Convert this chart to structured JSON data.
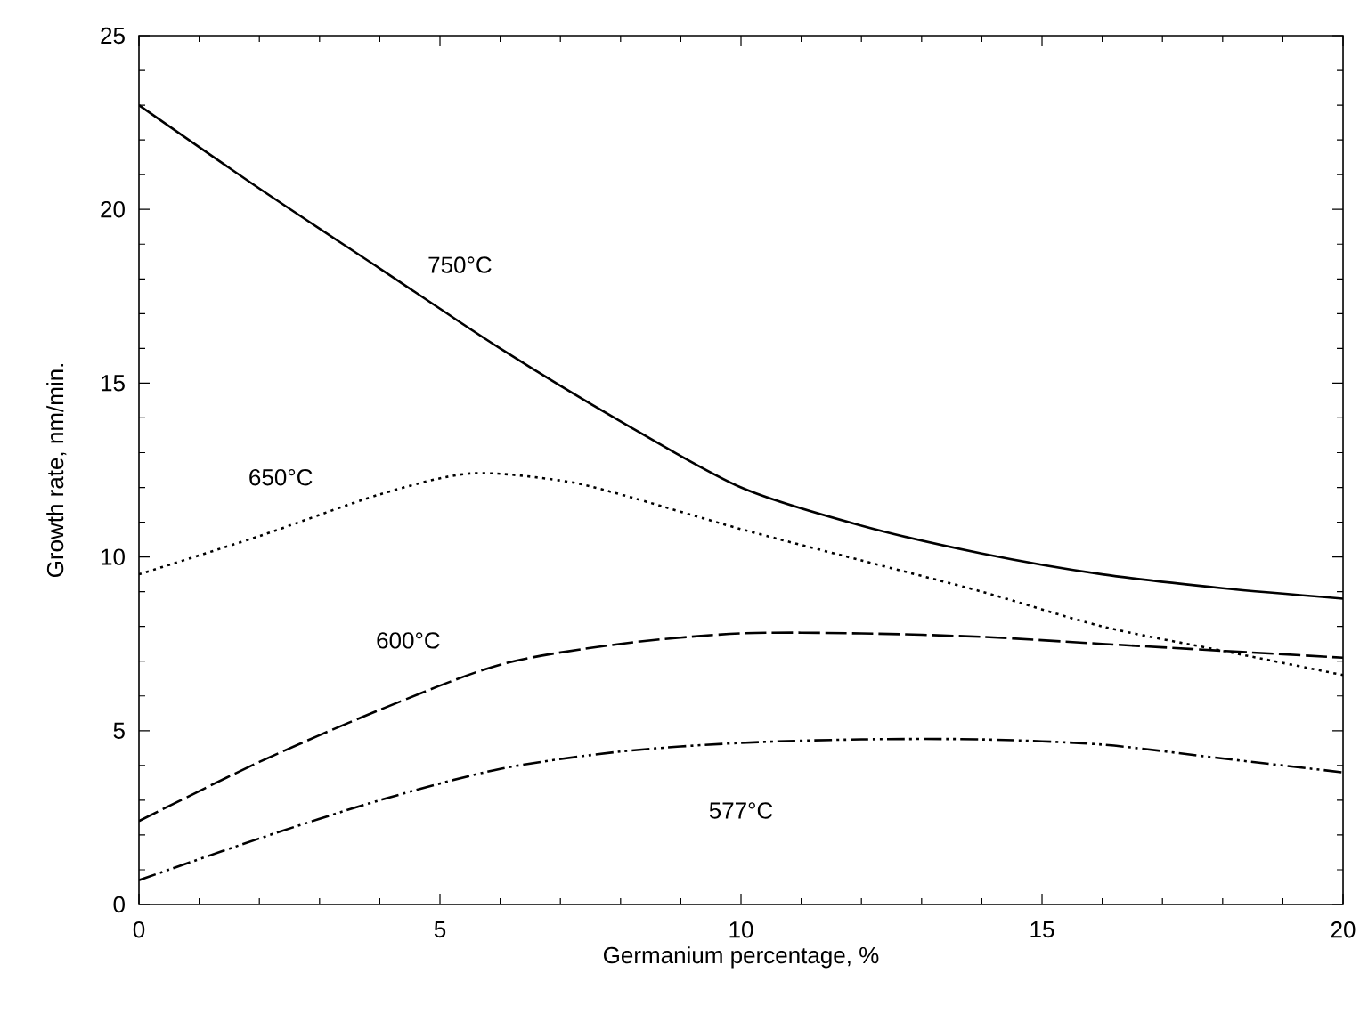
{
  "chart_data": {
    "type": "line",
    "xlabel": "Germanium percentage, %",
    "ylabel": "Growth rate, nm/min.",
    "xlim": [
      0,
      20
    ],
    "ylim": [
      0,
      25
    ],
    "xticks": [
      0,
      5,
      10,
      15,
      20
    ],
    "yticks": [
      0,
      5,
      10,
      15,
      20,
      25
    ],
    "grid": false,
    "marker": "none",
    "series": [
      {
        "name": "750°C",
        "x": [
          0,
          2,
          4,
          6,
          8,
          10,
          12,
          14,
          16,
          18,
          20
        ],
        "values": [
          23,
          20.6,
          18.3,
          16.0,
          13.9,
          12.0,
          10.9,
          10.1,
          9.5,
          9.1,
          8.8
        ],
        "color": "#000000",
        "line_style": "solid"
      },
      {
        "name": "650°C",
        "x": [
          0,
          2,
          4,
          5.5,
          7,
          8,
          10,
          12,
          14,
          16,
          18,
          20
        ],
        "values": [
          9.5,
          10.6,
          11.8,
          12.4,
          12.2,
          11.8,
          10.8,
          9.9,
          9.0,
          8.0,
          7.3,
          6.6
        ],
        "color": "#000000",
        "line_style": "dotted"
      },
      {
        "name": "600°C",
        "x": [
          0,
          2,
          4,
          6,
          8,
          10,
          12,
          14,
          16,
          18,
          20
        ],
        "values": [
          2.4,
          4.1,
          5.6,
          6.9,
          7.5,
          7.8,
          7.8,
          7.7,
          7.5,
          7.3,
          7.1
        ],
        "color": "#000000",
        "line_style": "dashed"
      },
      {
        "name": "577°C",
        "x": [
          0,
          2,
          4,
          6,
          8,
          10,
          12,
          14,
          16,
          18,
          20
        ],
        "values": [
          0.7,
          1.9,
          3.0,
          3.9,
          4.4,
          4.65,
          4.75,
          4.75,
          4.6,
          4.2,
          3.8
        ],
        "color": "#000000",
        "line_style": "dashdotdotted"
      }
    ]
  }
}
